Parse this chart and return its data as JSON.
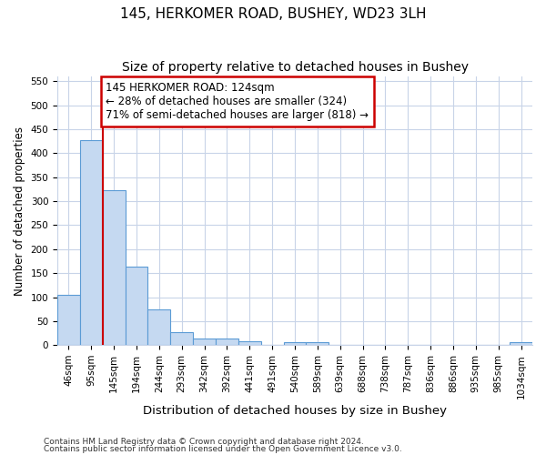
{
  "title": "145, HERKOMER ROAD, BUSHEY, WD23 3LH",
  "subtitle": "Size of property relative to detached houses in Bushey",
  "xlabel": "Distribution of detached houses by size in Bushey",
  "ylabel": "Number of detached properties",
  "footnote1": "Contains HM Land Registry data © Crown copyright and database right 2024.",
  "footnote2": "Contains public sector information licensed under the Open Government Licence v3.0.",
  "bin_labels": [
    "46sqm",
    "95sqm",
    "145sqm",
    "194sqm",
    "244sqm",
    "293sqm",
    "342sqm",
    "392sqm",
    "441sqm",
    "491sqm",
    "540sqm",
    "589sqm",
    "639sqm",
    "688sqm",
    "738sqm",
    "787sqm",
    "836sqm",
    "886sqm",
    "935sqm",
    "985sqm",
    "1034sqm"
  ],
  "bar_heights": [
    105,
    428,
    322,
    163,
    75,
    27,
    13,
    13,
    8,
    0,
    6,
    6,
    0,
    0,
    0,
    0,
    0,
    0,
    0,
    0,
    6
  ],
  "bar_color": "#c5d9f1",
  "bar_edge_color": "#5b9bd5",
  "vline_color": "#cc0000",
  "vline_bar_index": 2,
  "annotation_line1": "145 HERKOMER ROAD: 124sqm",
  "annotation_line2": "← 28% of detached houses are smaller (324)",
  "annotation_line3": "71% of semi-detached houses are larger (818) →",
  "annotation_box_color": "#ffffff",
  "annotation_box_edge": "#cc0000",
  "ylim": [
    0,
    560
  ],
  "yticks": [
    0,
    50,
    100,
    150,
    200,
    250,
    300,
    350,
    400,
    450,
    500,
    550
  ],
  "bg_color": "#ffffff",
  "grid_color": "#c8d4e8",
  "title_fontsize": 11,
  "subtitle_fontsize": 10,
  "xlabel_fontsize": 9.5,
  "ylabel_fontsize": 8.5,
  "tick_fontsize": 7.5,
  "annotation_fontsize": 8.5,
  "footnote_fontsize": 6.5
}
